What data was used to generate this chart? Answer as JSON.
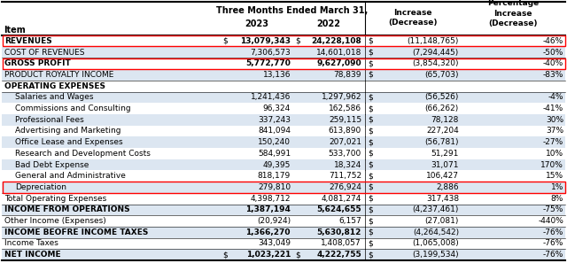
{
  "rows": [
    {
      "label": "REVENUES",
      "indent": 0,
      "bold": true,
      "val2023": "13,079,343",
      "dollar2023": true,
      "val2022": "24,228,108",
      "dollar2022": true,
      "inc_dollar": true,
      "inc": "(11,148,765)",
      "pct": "-46%",
      "highlight_red": true,
      "bg": "white"
    },
    {
      "label": "COST OF REVENUES",
      "indent": 0,
      "bold": false,
      "val2023": "7,306,573",
      "dollar2023": false,
      "val2022": "14,601,018",
      "dollar2022": false,
      "inc_dollar": true,
      "inc": "(7,294,445)",
      "pct": "-50%",
      "highlight_red": false,
      "bg": "#dce6f1"
    },
    {
      "label": "GROSS PROFIT",
      "indent": 0,
      "bold": true,
      "val2023": "5,772,770",
      "dollar2023": false,
      "val2022": "9,627,090",
      "dollar2022": false,
      "inc_dollar": true,
      "inc": "(3,854,320)",
      "pct": "-40%",
      "highlight_red": true,
      "bg": "white"
    },
    {
      "label": "PRODUCT ROYALTY INCOME",
      "indent": 0,
      "bold": false,
      "val2023": "13,136",
      "dollar2023": false,
      "val2022": "78,839",
      "dollar2022": false,
      "inc_dollar": true,
      "inc": "(65,703)",
      "pct": "-83%",
      "highlight_red": false,
      "bg": "#dce6f1"
    },
    {
      "label": "OPERATING EXPENSES",
      "indent": 0,
      "bold": true,
      "val2023": "",
      "dollar2023": false,
      "val2022": "",
      "dollar2022": false,
      "inc_dollar": false,
      "inc": "",
      "pct": "",
      "highlight_red": false,
      "bg": "white"
    },
    {
      "label": "Salaries and Wages",
      "indent": 1,
      "bold": false,
      "val2023": "1,241,436",
      "dollar2023": false,
      "val2022": "1,297,962",
      "dollar2022": false,
      "inc_dollar": true,
      "inc": "(56,526)",
      "pct": "-4%",
      "highlight_red": false,
      "bg": "#dce6f1"
    },
    {
      "label": "Commissions and Consulting",
      "indent": 1,
      "bold": false,
      "val2023": "96,324",
      "dollar2023": false,
      "val2022": "162,586",
      "dollar2022": false,
      "inc_dollar": true,
      "inc": "(66,262)",
      "pct": "-41%",
      "highlight_red": false,
      "bg": "white"
    },
    {
      "label": "Professional Fees",
      "indent": 1,
      "bold": false,
      "val2023": "337,243",
      "dollar2023": false,
      "val2022": "259,115",
      "dollar2022": false,
      "inc_dollar": true,
      "inc": "78,128",
      "pct": "30%",
      "highlight_red": false,
      "bg": "#dce6f1"
    },
    {
      "label": "Advertising and Marketing",
      "indent": 1,
      "bold": false,
      "val2023": "841,094",
      "dollar2023": false,
      "val2022": "613,890",
      "dollar2022": false,
      "inc_dollar": true,
      "inc": "227,204",
      "pct": "37%",
      "highlight_red": false,
      "bg": "white"
    },
    {
      "label": "Office Lease and Expenses",
      "indent": 1,
      "bold": false,
      "val2023": "150,240",
      "dollar2023": false,
      "val2022": "207,021",
      "dollar2022": false,
      "inc_dollar": true,
      "inc": "(56,781)",
      "pct": "-27%",
      "highlight_red": false,
      "bg": "#dce6f1"
    },
    {
      "label": "Research and Development Costs",
      "indent": 1,
      "bold": false,
      "val2023": "584,991",
      "dollar2023": false,
      "val2022": "533,700",
      "dollar2022": false,
      "inc_dollar": true,
      "inc": "51,291",
      "pct": "10%",
      "highlight_red": false,
      "bg": "white"
    },
    {
      "label": "Bad Debt Expense",
      "indent": 1,
      "bold": false,
      "val2023": "49,395",
      "dollar2023": false,
      "val2022": "18,324",
      "dollar2022": false,
      "inc_dollar": true,
      "inc": "31,071",
      "pct": "170%",
      "highlight_red": false,
      "bg": "#dce6f1"
    },
    {
      "label": "General and Administrative",
      "indent": 1,
      "bold": false,
      "val2023": "818,179",
      "dollar2023": false,
      "val2022": "711,752",
      "dollar2022": false,
      "inc_dollar": true,
      "inc": "106,427",
      "pct": "15%",
      "highlight_red": false,
      "bg": "white"
    },
    {
      "label": "Depreciation",
      "indent": 1,
      "bold": false,
      "val2023": "279,810",
      "dollar2023": false,
      "val2022": "276,924",
      "dollar2022": false,
      "inc_dollar": true,
      "inc": "2,886",
      "pct": "1%",
      "highlight_red": true,
      "bg": "#dce6f1"
    },
    {
      "label": "Total Operating Expenses",
      "indent": 0,
      "bold": false,
      "val2023": "4,398,712",
      "dollar2023": false,
      "val2022": "4,081,274",
      "dollar2022": false,
      "inc_dollar": true,
      "inc": "317,438",
      "pct": "8%",
      "highlight_red": false,
      "bg": "white"
    },
    {
      "label": "INCOME FROM OPERATIONS",
      "indent": 0,
      "bold": true,
      "val2023": "1,387,194",
      "dollar2023": false,
      "val2022": "5,624,655",
      "dollar2022": false,
      "inc_dollar": true,
      "inc": "(4,237,461)",
      "pct": "-75%",
      "highlight_red": false,
      "bg": "#dce6f1"
    },
    {
      "label": "Other Income (Expenses)",
      "indent": 0,
      "bold": false,
      "val2023": "(20,924)",
      "dollar2023": false,
      "val2022": "6,157",
      "dollar2022": false,
      "inc_dollar": true,
      "inc": "(27,081)",
      "pct": "-440%",
      "highlight_red": false,
      "bg": "white"
    },
    {
      "label": "INCOME BEOFRE INCOME TAXES",
      "indent": 0,
      "bold": true,
      "val2023": "1,366,270",
      "dollar2023": false,
      "val2022": "5,630,812",
      "dollar2022": false,
      "inc_dollar": true,
      "inc": "(4,264,542)",
      "pct": "-76%",
      "highlight_red": false,
      "bg": "#dce6f1"
    },
    {
      "label": "Income Taxes",
      "indent": 0,
      "bold": false,
      "val2023": "343,049",
      "dollar2023": false,
      "val2022": "1,408,057",
      "dollar2022": false,
      "inc_dollar": true,
      "inc": "(1,065,008)",
      "pct": "-76%",
      "highlight_red": false,
      "bg": "white"
    },
    {
      "label": "NET INCOME",
      "indent": 0,
      "bold": true,
      "val2023": "1,023,221",
      "dollar2023": true,
      "val2022": "4,222,755",
      "dollar2022": true,
      "inc_dollar": true,
      "inc": "(3,199,534)",
      "pct": "-76%",
      "highlight_red": false,
      "bg": "#dce6f1"
    }
  ],
  "title_line1": "Three Months Ended March 31,",
  "year2023": "2023",
  "year2022": "2022",
  "hdr_increase": "Increase\n(Decrease)",
  "hdr_pct": "Percentage\nIncrease\n(Decrease)",
  "hdr_item": "Item",
  "font_size": 6.5,
  "red_color": "#FF0000",
  "blue_bg": "#dce6f1",
  "white_bg": "white",
  "line_color": "black",
  "special_lines": [
    1,
    3,
    4,
    13,
    14,
    15,
    16,
    17,
    18
  ]
}
